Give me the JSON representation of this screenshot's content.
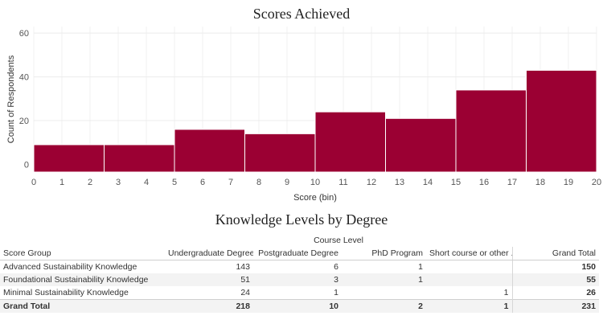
{
  "histogram": {
    "title": "Scores Achieved",
    "chart_data": {
      "type": "bar",
      "title": "Scores Achieved",
      "xlabel": "Score (bin)",
      "ylabel": "Count of Respondents",
      "xlim": [
        0,
        20
      ],
      "ylim": [
        -3.5,
        63
      ],
      "x_ticks": [
        0,
        1,
        2,
        3,
        4,
        5,
        6,
        7,
        8,
        9,
        10,
        11,
        12,
        13,
        14,
        15,
        16,
        17,
        18,
        19,
        20
      ],
      "y_ticks": [
        0,
        20,
        40,
        60
      ],
      "bins": [
        {
          "start": 0,
          "end": 2.5,
          "value": 9
        },
        {
          "start": 2.5,
          "end": 5,
          "value": 9
        },
        {
          "start": 5,
          "end": 7.5,
          "value": 16
        },
        {
          "start": 7.5,
          "end": 10,
          "value": 14
        },
        {
          "start": 10,
          "end": 12.5,
          "value": 24
        },
        {
          "start": 12.5,
          "end": 15,
          "value": 21
        },
        {
          "start": 15,
          "end": 17.5,
          "value": 34
        },
        {
          "start": 17.5,
          "end": 20,
          "value": 43
        }
      ],
      "bar_color": "#9b0033",
      "grid": true
    }
  },
  "table": {
    "title": "Knowledge Levels by Degree",
    "column_group_label": "Course Level",
    "row_header": "Score Group",
    "columns": [
      "Undergraduate Degree",
      "Postgraduate Degree",
      "PhD Program",
      "Short course or other ..",
      "Grand Total"
    ],
    "rows": [
      {
        "label": "Advanced Sustainability Knowledge",
        "cells": [
          "143",
          "6",
          "1",
          "",
          "150"
        ]
      },
      {
        "label": "Foundational Sustainability Knowledge",
        "cells": [
          "51",
          "3",
          "1",
          "",
          "55"
        ]
      },
      {
        "label": "Minimal Sustainability Knowledge",
        "cells": [
          "24",
          "1",
          "",
          "1",
          "26"
        ]
      },
      {
        "label": "Grand Total",
        "cells": [
          "218",
          "10",
          "2",
          "1",
          "231"
        ]
      }
    ]
  }
}
